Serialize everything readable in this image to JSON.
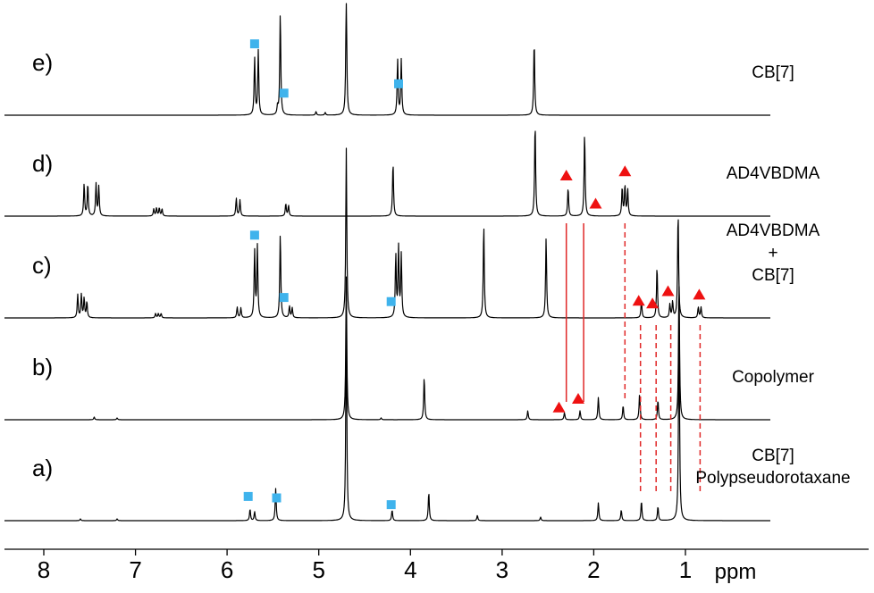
{
  "chart_data": {
    "type": "line",
    "title": "",
    "xlabel": "ppm",
    "ylabel": "",
    "xlim": [
      8.35,
      0.5
    ],
    "x_reversed": true,
    "x_ticks": [
      8,
      7,
      6,
      5,
      4,
      3,
      2,
      1
    ],
    "x_tick_labels": [
      "8",
      "7",
      "6",
      "5",
      "4",
      "3",
      "2",
      "1"
    ],
    "grid": false,
    "colors": {
      "trace": "#000000",
      "square_marker": "#3fb3ec",
      "triangle_marker": "#ee1111",
      "correlation_line": "#e02828"
    },
    "series": [
      {
        "panel": "e)",
        "label_lines": [
          "CB[7]"
        ],
        "peaks": [
          {
            "ppm": 5.7,
            "height": 0.64
          },
          {
            "ppm": 5.66,
            "height": 0.72
          },
          {
            "ppm": 5.45,
            "height": 0.09
          },
          {
            "ppm": 5.42,
            "height": 1.15
          },
          {
            "ppm": 5.03,
            "height": 0.04
          },
          {
            "ppm": 4.93,
            "height": 0.03
          },
          {
            "ppm": 4.7,
            "height": 1.4
          },
          {
            "ppm": 4.14,
            "height": 0.62
          },
          {
            "ppm": 4.1,
            "height": 0.62
          },
          {
            "ppm": 2.65,
            "height": 0.83
          }
        ],
        "markers": [
          {
            "shape": "square",
            "ppm": 5.7
          },
          {
            "shape": "square",
            "ppm": 5.38
          },
          {
            "shape": "square",
            "ppm": 4.13
          }
        ]
      },
      {
        "panel": "d)",
        "label_lines": [
          "AD4VBDMA"
        ],
        "peaks": [
          {
            "ppm": 7.56,
            "height": 0.36
          },
          {
            "ppm": 7.52,
            "height": 0.36
          },
          {
            "ppm": 7.43,
            "height": 0.36
          },
          {
            "ppm": 7.4,
            "height": 0.33
          },
          {
            "ppm": 6.8,
            "height": 0.08
          },
          {
            "ppm": 6.77,
            "height": 0.09
          },
          {
            "ppm": 6.74,
            "height": 0.09
          },
          {
            "ppm": 6.71,
            "height": 0.08
          },
          {
            "ppm": 5.9,
            "height": 0.2
          },
          {
            "ppm": 5.86,
            "height": 0.18
          },
          {
            "ppm": 5.36,
            "height": 0.14
          },
          {
            "ppm": 5.33,
            "height": 0.12
          },
          {
            "ppm": 4.19,
            "height": 0.6
          },
          {
            "ppm": 2.64,
            "height": 1.05
          },
          {
            "ppm": 2.28,
            "height": 0.32
          },
          {
            "ppm": 2.1,
            "height": 0.94
          },
          {
            "ppm": 1.69,
            "height": 0.32
          },
          {
            "ppm": 1.66,
            "height": 0.34
          },
          {
            "ppm": 1.63,
            "height": 0.3
          }
        ],
        "markers": [
          {
            "shape": "triangle",
            "ppm": 2.3
          },
          {
            "shape": "triangle",
            "ppm": 1.98
          },
          {
            "shape": "triangle",
            "ppm": 1.66
          }
        ]
      },
      {
        "panel": "c)",
        "label_lines": [
          "AD4VBDMA",
          "+",
          "CB[7]"
        ],
        "peaks": [
          {
            "ppm": 7.63,
            "height": 0.26
          },
          {
            "ppm": 7.59,
            "height": 0.26
          },
          {
            "ppm": 7.56,
            "height": 0.22
          },
          {
            "ppm": 7.53,
            "height": 0.18
          },
          {
            "ppm": 6.78,
            "height": 0.05
          },
          {
            "ppm": 6.75,
            "height": 0.05
          },
          {
            "ppm": 6.72,
            "height": 0.05
          },
          {
            "ppm": 5.89,
            "height": 0.12
          },
          {
            "ppm": 5.85,
            "height": 0.11
          },
          {
            "ppm": 5.7,
            "height": 0.75
          },
          {
            "ppm": 5.67,
            "height": 0.8
          },
          {
            "ppm": 5.42,
            "height": 0.95
          },
          {
            "ppm": 5.32,
            "height": 0.13
          },
          {
            "ppm": 5.29,
            "height": 0.11
          },
          {
            "ppm": 4.7,
            "height": 1.9
          },
          {
            "ppm": 4.16,
            "height": 0.7
          },
          {
            "ppm": 4.13,
            "height": 0.78
          },
          {
            "ppm": 4.1,
            "height": 0.7
          },
          {
            "ppm": 3.2,
            "height": 1.05
          },
          {
            "ppm": 2.52,
            "height": 0.9
          },
          {
            "ppm": 1.48,
            "height": 0.2
          },
          {
            "ppm": 1.31,
            "height": 0.58
          },
          {
            "ppm": 1.17,
            "height": 0.15
          },
          {
            "ppm": 1.14,
            "height": 0.18
          },
          {
            "ppm": 1.08,
            "height": 1.2
          },
          {
            "ppm": 0.86,
            "height": 0.12
          },
          {
            "ppm": 0.83,
            "height": 0.12
          }
        ],
        "markers": [
          {
            "shape": "square",
            "ppm": 5.7
          },
          {
            "shape": "square",
            "ppm": 5.38
          },
          {
            "shape": "square",
            "ppm": 4.21
          },
          {
            "shape": "triangle",
            "ppm": 1.51
          },
          {
            "shape": "triangle",
            "ppm": 1.36
          },
          {
            "shape": "triangle",
            "ppm": 1.19
          },
          {
            "shape": "triangle",
            "ppm": 0.85
          }
        ]
      },
      {
        "panel": "b)",
        "label_lines": [
          "Copolymer"
        ],
        "peaks": [
          {
            "ppm": 7.45,
            "height": 0.03
          },
          {
            "ppm": 7.2,
            "height": 0.02
          },
          {
            "ppm": 4.7,
            "height": 1.6
          },
          {
            "ppm": 4.32,
            "height": 0.02
          },
          {
            "ppm": 3.85,
            "height": 0.48
          },
          {
            "ppm": 2.72,
            "height": 0.1
          },
          {
            "ppm": 2.32,
            "height": 0.08
          },
          {
            "ppm": 2.15,
            "height": 0.1
          },
          {
            "ppm": 1.95,
            "height": 0.25
          },
          {
            "ppm": 1.68,
            "height": 0.16
          },
          {
            "ppm": 1.5,
            "height": 0.3
          },
          {
            "ppm": 1.3,
            "height": 0.22
          },
          {
            "ppm": 1.07,
            "height": 1.6
          }
        ],
        "markers": [
          {
            "shape": "triangle",
            "ppm": 2.38
          },
          {
            "shape": "triangle",
            "ppm": 2.17
          }
        ]
      },
      {
        "panel": "a)",
        "label_lines": [
          "CB[7]",
          "Polypseudorotaxane"
        ],
        "peaks": [
          {
            "ppm": 7.6,
            "height": 0.02
          },
          {
            "ppm": 7.2,
            "height": 0.02
          },
          {
            "ppm": 5.75,
            "height": 0.13
          },
          {
            "ppm": 5.7,
            "height": 0.1
          },
          {
            "ppm": 5.47,
            "height": 0.36
          },
          {
            "ppm": 4.7,
            "height": 2.3
          },
          {
            "ppm": 4.2,
            "height": 0.12
          },
          {
            "ppm": 3.8,
            "height": 0.32
          },
          {
            "ppm": 3.27,
            "height": 0.06
          },
          {
            "ppm": 2.58,
            "height": 0.04
          },
          {
            "ppm": 1.95,
            "height": 0.2
          },
          {
            "ppm": 1.7,
            "height": 0.12
          },
          {
            "ppm": 1.48,
            "height": 0.22
          },
          {
            "ppm": 1.3,
            "height": 0.16
          },
          {
            "ppm": 1.07,
            "height": 2.4
          }
        ],
        "markers": [
          {
            "shape": "square",
            "ppm": 5.77
          },
          {
            "shape": "square",
            "ppm": 5.46
          },
          {
            "shape": "square",
            "ppm": 4.21
          }
        ]
      }
    ],
    "correlation_lines": [
      {
        "ppm": 2.3,
        "from": "d)",
        "to": "b)",
        "style": "solid"
      },
      {
        "ppm": 2.11,
        "from": "d)",
        "to": "b)",
        "style": "solid"
      },
      {
        "ppm": 1.66,
        "from": "d)",
        "to": "b)",
        "style": "dashed"
      },
      {
        "ppm": 1.49,
        "from": "c)",
        "to": "a)",
        "style": "dashed"
      },
      {
        "ppm": 1.32,
        "from": "c)",
        "to": "a)",
        "style": "dashed"
      },
      {
        "ppm": 1.16,
        "from": "c)",
        "to": "a)",
        "style": "dashed"
      },
      {
        "ppm": 0.84,
        "from": "c)",
        "to": "a)",
        "style": "dashed"
      }
    ]
  }
}
